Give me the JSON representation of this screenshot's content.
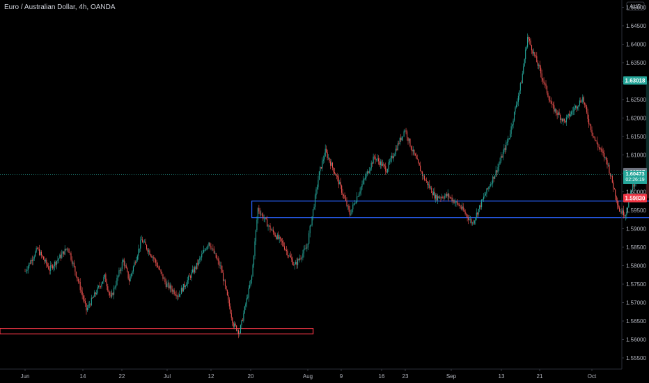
{
  "header": {
    "title": "Euro / Australian Dollar, 4h, OANDA"
  },
  "currency_label": "AUD",
  "price_axis": {
    "ticks": [
      "1.65000",
      "1.64500",
      "1.64000",
      "1.63500",
      "1.63000",
      "1.62500",
      "1.62000",
      "1.61500",
      "1.61000",
      "1.60500",
      "1.60000",
      "1.59500",
      "1.59000",
      "1.58500",
      "1.58000",
      "1.57500",
      "1.57000",
      "1.56500",
      "1.56000",
      "1.55500"
    ]
  },
  "time_axis": {
    "ticks": [
      "Jun",
      "14",
      "22",
      "Jul",
      "12",
      "20",
      "Aug",
      "9",
      "16",
      "23",
      "Sep",
      "13",
      "21",
      "Oct"
    ]
  },
  "badges": {
    "target": "1.63018",
    "reference": "1.60537",
    "current_price": "1.60473",
    "countdown": "02:26:19",
    "stop": "1.59830"
  },
  "colors": {
    "background": "#000000",
    "up_candle": "#26a69a",
    "down_candle": "#ef5350",
    "support_zone": "#2962ff",
    "low_zone": "#f23645",
    "profit_zone": "#0b2a27",
    "loss_zone": "#3b1313"
  },
  "chart_data": {
    "type": "candlestick",
    "title": "Euro / Australian Dollar, 4h, OANDA",
    "symbol": "EURAUD",
    "interval": "4h",
    "source": "OANDA",
    "ylim": [
      1.5525,
      1.6525
    ],
    "y_scale": "linear",
    "price_path": [
      [
        "Jun 1",
        1.5785
      ],
      [
        "Jun 3",
        1.5845
      ],
      [
        "Jun 5",
        1.579
      ],
      [
        "Jun 8",
        1.585
      ],
      [
        "Jun 10",
        1.574
      ],
      [
        "Jun 11",
        1.568
      ],
      [
        "Jun 14",
        1.577
      ],
      [
        "Jun 15",
        1.571
      ],
      [
        "Jun 17",
        1.5815
      ],
      [
        "Jun 18",
        1.576
      ],
      [
        "Jun 20",
        1.587
      ],
      [
        "Jun 22",
        1.582
      ],
      [
        "Jun 24",
        1.575
      ],
      [
        "Jun 26",
        1.572
      ],
      [
        "Jun 29",
        1.58
      ],
      [
        "Jul 1",
        1.5865
      ],
      [
        "Jul 3",
        1.579
      ],
      [
        "Jul 5",
        1.564
      ],
      [
        "Jul 6",
        1.562
      ],
      [
        "Jul 8",
        1.577
      ],
      [
        "Jul 9",
        1.5955
      ],
      [
        "Jul 11",
        1.59
      ],
      [
        "Jul 13",
        1.586
      ],
      [
        "Jul 15",
        1.58
      ],
      [
        "Jul 17",
        1.585
      ],
      [
        "Jul 19",
        1.605
      ],
      [
        "Jul 20",
        1.611
      ],
      [
        "Jul 22",
        1.6035
      ],
      [
        "Jul 24",
        1.594
      ],
      [
        "Jul 26",
        1.602
      ],
      [
        "Jul 28",
        1.6095
      ],
      [
        "Jul 30",
        1.606
      ],
      [
        "Aug 2",
        1.617
      ],
      [
        "Aug 3",
        1.612
      ],
      [
        "Aug 5",
        1.604
      ],
      [
        "Aug 7",
        1.5985
      ],
      [
        "Aug 9",
        1.599
      ],
      [
        "Aug 11",
        1.596
      ],
      [
        "Aug 13",
        1.5915
      ],
      [
        "Aug 15",
        1.599
      ],
      [
        "Aug 17",
        1.606
      ],
      [
        "Aug 19",
        1.615
      ],
      [
        "Aug 21",
        1.63
      ],
      [
        "Aug 22",
        1.642
      ],
      [
        "Aug 24",
        1.633
      ],
      [
        "Aug 26",
        1.623
      ],
      [
        "Aug 28",
        1.619
      ],
      [
        "Aug 31",
        1.6255
      ],
      [
        "Sep 1",
        1.619
      ],
      [
        "Sep 2",
        1.614
      ],
      [
        "Sep 4",
        1.608
      ],
      [
        "Sep 6",
        1.595
      ],
      [
        "Sep 7",
        1.594
      ],
      [
        "Sep 8",
        1.601
      ],
      [
        "Sep 9",
        1.6047
      ]
    ],
    "current_price": 1.60473,
    "zones": [
      {
        "kind": "support",
        "from": "Jul 8",
        "to": "Sep 16",
        "low": 1.593,
        "high": 1.5975
      },
      {
        "kind": "low",
        "from": "May 27",
        "to": "Jul 18",
        "low": 1.5615,
        "high": 1.563
      }
    ],
    "position": {
      "type": "long",
      "from": "Sep 10",
      "to": "Sep 18",
      "entry": 1.60537,
      "target": 1.63018,
      "stop": 1.5983
    }
  }
}
